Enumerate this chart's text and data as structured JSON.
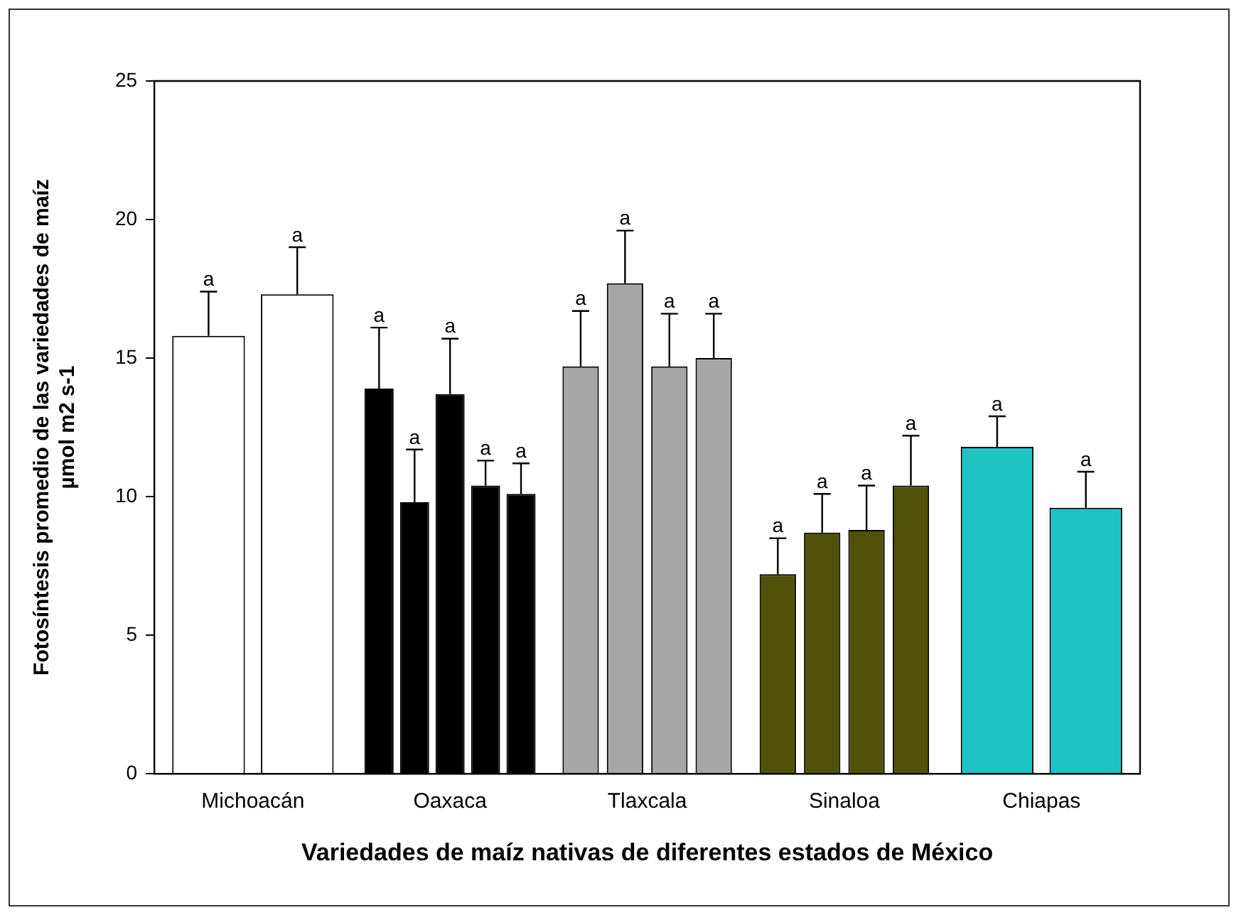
{
  "chart_data": {
    "type": "bar",
    "categories": [
      "Michoacán",
      "Oaxaca",
      "Tlaxcala",
      "Sinaloa",
      "Chiapas"
    ],
    "xlabel": "Variedades de maíz nativas de diferentes estados de México",
    "ylabel": "Fotosíntesis promedio de las variedades de maíz\nµmol m2 s-1",
    "ylim": [
      0,
      25
    ],
    "yticks": [
      0,
      5,
      10,
      15,
      20,
      25
    ],
    "grid": false,
    "legend": false,
    "series": [
      {
        "colors": [
          "#ffffff",
          "#000000",
          "#a6a6a6",
          "#4f5208",
          "#1ec4c4"
        ],
        "values": [
          15.8,
          13.9,
          14.7,
          7.2,
          11.8
        ],
        "errors": [
          1.6,
          2.2,
          2.0,
          1.3,
          1.1
        ],
        "value_labels": [
          "a",
          "a",
          "a",
          "a",
          "a"
        ]
      },
      {
        "colors": [
          "#ffffff",
          "#000000",
          "#a6a6a6",
          "#4f5208",
          "#1ec4c4"
        ],
        "values": [
          17.3,
          9.8,
          17.7,
          8.7,
          9.6
        ],
        "errors": [
          1.7,
          1.9,
          1.9,
          1.4,
          1.3
        ],
        "value_labels": [
          "a",
          "a",
          "a",
          "a",
          "a"
        ]
      },
      {
        "colors": [
          "#ffffff",
          "#000000",
          "#a6a6a6",
          "#4f5208",
          "#1ec4c4"
        ],
        "values": [
          null,
          13.7,
          14.7,
          8.8,
          null
        ],
        "errors": [
          null,
          2.0,
          1.9,
          1.6,
          null
        ],
        "value_labels": [
          null,
          "a",
          "a",
          "a",
          null
        ]
      },
      {
        "colors": [
          "#ffffff",
          "#000000",
          "#a6a6a6",
          "#4f5208",
          "#1ec4c4"
        ],
        "values": [
          null,
          10.4,
          15.0,
          10.4,
          null
        ],
        "errors": [
          null,
          0.9,
          1.6,
          1.8,
          null
        ],
        "value_labels": [
          null,
          "a",
          "a",
          "a",
          null
        ]
      },
      {
        "colors": [
          "#ffffff",
          "#000000",
          "#a6a6a6",
          "#4f5208",
          "#1ec4c4"
        ],
        "values": [
          null,
          10.1,
          null,
          null,
          null
        ],
        "errors": [
          null,
          1.1,
          null,
          null,
          null
        ],
        "value_labels": [
          null,
          "a",
          null,
          null,
          null
        ]
      }
    ]
  }
}
